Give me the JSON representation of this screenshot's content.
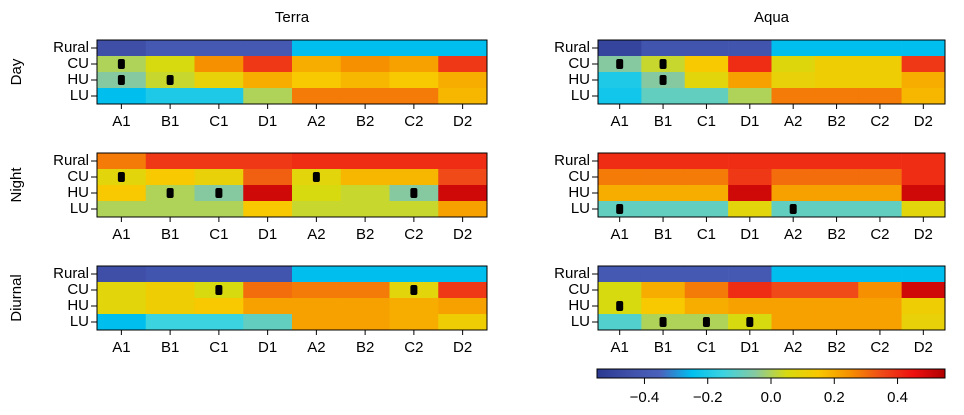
{
  "chart_data": {
    "type": "heatmap",
    "column_titles": [
      "Terra",
      "Aqua"
    ],
    "row_titles": [
      "Day",
      "Night",
      "Diurnal"
    ],
    "categories": [
      "A1",
      "B1",
      "C1",
      "D1",
      "A2",
      "B2",
      "C2",
      "D2"
    ],
    "rows": [
      "Rural",
      "CU",
      "HU",
      "LU"
    ],
    "panels": [
      {
        "values": [
          [
            -0.45,
            -0.4,
            -0.4,
            -0.4,
            -0.25,
            -0.25,
            -0.25,
            -0.25
          ],
          [
            0.0,
            0.05,
            0.25,
            0.38,
            0.2,
            0.25,
            0.22,
            0.38
          ],
          [
            -0.05,
            0.03,
            0.1,
            0.2,
            0.15,
            0.18,
            0.15,
            0.2
          ],
          [
            -0.25,
            -0.2,
            -0.2,
            0.0,
            0.28,
            0.28,
            0.28,
            0.18
          ]
        ],
        "dots": [
          [
            1,
            0
          ],
          [
            2,
            0
          ],
          [
            2,
            1
          ]
        ]
      },
      {
        "values": [
          [
            -0.5,
            -0.42,
            -0.42,
            -0.42,
            -0.25,
            -0.25,
            -0.25,
            -0.25
          ],
          [
            -0.05,
            0.03,
            0.15,
            0.4,
            0.07,
            0.12,
            0.12,
            0.38
          ],
          [
            -0.2,
            -0.05,
            0.08,
            0.22,
            0.1,
            0.12,
            0.12,
            0.2
          ],
          [
            -0.22,
            -0.1,
            -0.1,
            0.0,
            0.28,
            0.28,
            0.28,
            0.18
          ]
        ],
        "dots": [
          [
            1,
            0
          ],
          [
            1,
            1
          ],
          [
            2,
            1
          ]
        ]
      },
      {
        "values": [
          [
            0.28,
            0.38,
            0.38,
            0.38,
            0.4,
            0.4,
            0.4,
            0.4
          ],
          [
            0.08,
            0.15,
            0.1,
            0.32,
            0.08,
            0.18,
            0.18,
            0.35
          ],
          [
            0.15,
            0.0,
            -0.05,
            0.5,
            0.05,
            0.03,
            -0.05,
            0.5
          ],
          [
            0.0,
            0.0,
            0.0,
            0.15,
            0.03,
            0.03,
            0.03,
            0.22
          ]
        ],
        "dots": [
          [
            1,
            0
          ],
          [
            2,
            1
          ],
          [
            2,
            2
          ],
          [
            1,
            4
          ],
          [
            2,
            6
          ]
        ]
      },
      {
        "values": [
          [
            0.4,
            0.4,
            0.4,
            0.4,
            0.4,
            0.4,
            0.4,
            0.4
          ],
          [
            0.28,
            0.28,
            0.28,
            0.38,
            0.3,
            0.3,
            0.3,
            0.4
          ],
          [
            0.2,
            0.2,
            0.2,
            0.5,
            0.22,
            0.22,
            0.22,
            0.5
          ],
          [
            -0.1,
            -0.1,
            -0.1,
            0.08,
            -0.1,
            -0.1,
            -0.1,
            0.08
          ]
        ],
        "dots": [
          [
            3,
            0
          ],
          [
            3,
            4
          ]
        ]
      },
      {
        "values": [
          [
            -0.45,
            -0.42,
            -0.42,
            -0.42,
            -0.25,
            -0.25,
            -0.25,
            -0.25
          ],
          [
            0.08,
            0.12,
            0.05,
            0.3,
            0.28,
            0.28,
            0.08,
            0.38
          ],
          [
            0.08,
            0.12,
            0.15,
            0.22,
            0.22,
            0.22,
            0.2,
            0.22
          ],
          [
            -0.25,
            -0.15,
            -0.15,
            -0.1,
            0.22,
            0.22,
            0.2,
            0.12
          ]
        ],
        "dots": [
          [
            1,
            2
          ],
          [
            1,
            6
          ]
        ]
      },
      {
        "values": [
          [
            -0.4,
            -0.4,
            -0.4,
            -0.4,
            -0.25,
            -0.25,
            -0.25,
            -0.25
          ],
          [
            0.05,
            0.2,
            0.28,
            0.4,
            0.35,
            0.35,
            0.25,
            0.5
          ],
          [
            0.05,
            0.15,
            0.2,
            0.22,
            0.22,
            0.22,
            0.22,
            0.12
          ],
          [
            -0.12,
            0.0,
            0.0,
            0.05,
            0.22,
            0.22,
            0.22,
            0.1
          ]
        ],
        "dots": [
          [
            2,
            0
          ],
          [
            3,
            1
          ],
          [
            3,
            2
          ],
          [
            3,
            3
          ]
        ]
      }
    ],
    "colorscale": [
      "#2b3990",
      "#3f4fa8",
      "#4a62bc",
      "#00bfef",
      "#3cd3e0",
      "#86c9a0",
      "#d8da10",
      "#f8c800",
      "#f69000",
      "#ef4a18",
      "#ee1010",
      "#b00000"
    ],
    "clim": [
      -0.55,
      0.55
    ],
    "cticks": [
      {
        "value": -0.4,
        "label": "−0.4"
      },
      {
        "value": -0.2,
        "label": "−0.2"
      },
      {
        "value": 0,
        "label": "0.0"
      },
      0.2,
      0.4
    ]
  }
}
